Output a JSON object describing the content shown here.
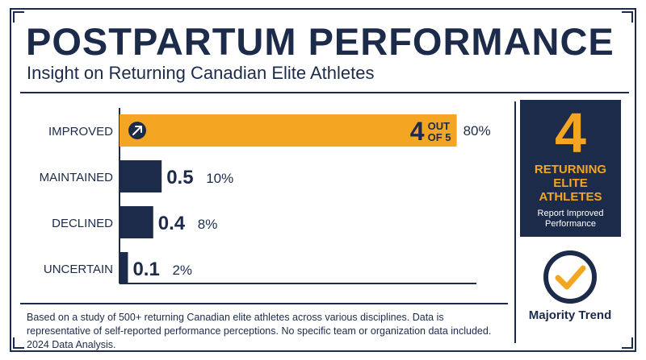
{
  "title": "POSTPARTUM PERFORMANCE",
  "subtitle": "Insight on Returning Canadian Elite Athletes",
  "chart_data": {
    "type": "bar",
    "orientation": "horizontal",
    "categories": [
      "IMPROVED",
      "MAINTAINED",
      "DECLINED",
      "UNCERTAIN"
    ],
    "values": [
      4,
      0.5,
      0.4,
      0.1
    ],
    "value_labels": [
      "4",
      "0.5",
      "0.4",
      "0.1"
    ],
    "value_suffix": [
      "OUT OF 5",
      "",
      "",
      ""
    ],
    "percent_labels": [
      "80%",
      "10%",
      "8%",
      "2%"
    ],
    "xlim": [
      0,
      5
    ],
    "grid": false,
    "highlight_index": 0,
    "highlight_icon": "arrow-up-right-icon"
  },
  "colors": {
    "navy": "#1c2b4a",
    "orange": "#f4a623",
    "white": "#ffffff"
  },
  "footnote": "Based on a study of 500+ returning Canadian elite athletes across various disciplines. Data is representative of self-reported performance perceptions. No specific team or organization data included. 2024 Data Analysis.",
  "panel": {
    "number": "4",
    "label": "RETURNING ELITE ATHLETES",
    "sub": "Report Improved Performance"
  },
  "trend": {
    "icon": "checkmark-circle-icon",
    "label": "Majority Trend"
  }
}
